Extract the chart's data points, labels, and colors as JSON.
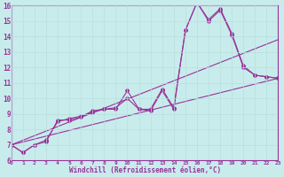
{
  "xlabel": "Windchill (Refroidissement éolien,°C)",
  "background_color": "#c8ecec",
  "line_color": "#993399",
  "grid_color": "#b8dede",
  "xlim": [
    0,
    23
  ],
  "ylim": [
    6,
    16
  ],
  "xticks": [
    0,
    1,
    2,
    3,
    4,
    5,
    6,
    7,
    8,
    9,
    10,
    11,
    12,
    13,
    14,
    15,
    16,
    17,
    18,
    19,
    20,
    21,
    22,
    23
  ],
  "yticks": [
    6,
    7,
    8,
    9,
    10,
    11,
    12,
    13,
    14,
    15,
    16
  ],
  "series1_x": [
    0,
    1,
    2,
    3,
    4,
    5,
    6,
    7,
    8,
    9,
    10,
    11,
    12,
    13,
    14,
    15,
    16,
    17,
    18,
    19,
    20,
    21,
    22,
    23
  ],
  "series1_y": [
    7.0,
    6.5,
    7.0,
    7.2,
    8.6,
    8.6,
    8.8,
    9.2,
    9.3,
    9.3,
    10.5,
    9.3,
    9.3,
    10.6,
    9.4,
    14.4,
    16.2,
    15.0,
    15.7,
    14.1,
    12.0,
    11.5,
    11.4,
    11.3
  ],
  "series2_x": [
    0,
    1,
    2,
    3,
    4,
    5,
    6,
    7,
    8,
    9,
    10,
    11,
    12,
    13,
    14,
    15,
    16,
    17,
    18,
    19,
    20,
    21,
    22,
    23
  ],
  "series2_y": [
    7.0,
    6.5,
    7.0,
    7.3,
    8.5,
    8.7,
    8.85,
    9.1,
    9.3,
    9.4,
    10.0,
    9.3,
    9.2,
    10.5,
    9.3,
    14.4,
    16.2,
    15.1,
    15.8,
    14.2,
    12.1,
    11.5,
    11.4,
    11.3
  ],
  "trend1_x": [
    0,
    23
  ],
  "trend1_y": [
    7.0,
    11.3
  ],
  "trend2_x": [
    0,
    23
  ],
  "trend2_y": [
    7.0,
    13.8
  ]
}
